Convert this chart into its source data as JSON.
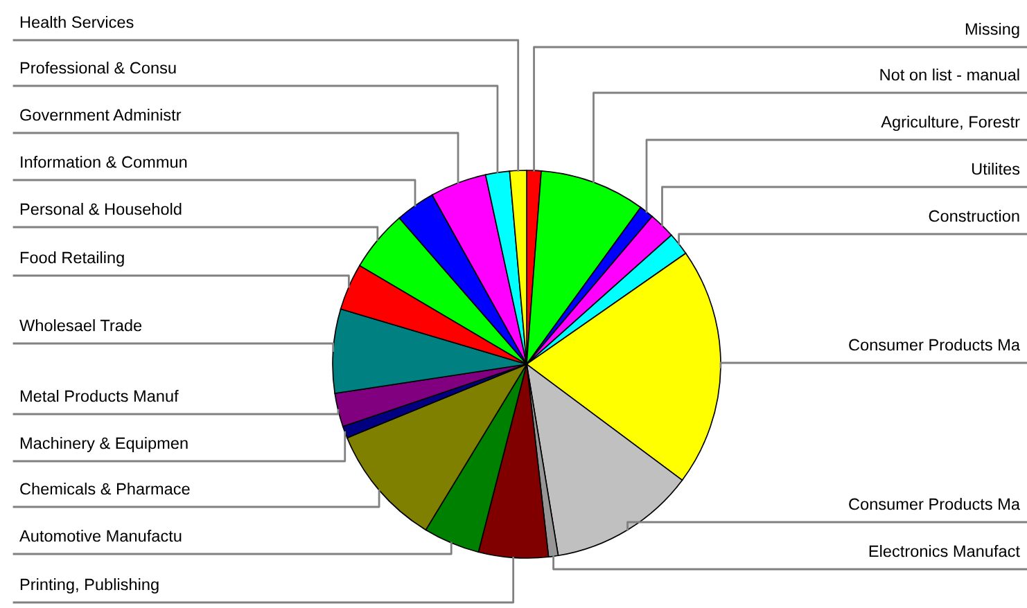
{
  "chart_data": {
    "type": "pie",
    "categories": [
      "Missing",
      "Not on list - manual",
      "Agriculture, Forestr",
      "Utilites",
      "Construction",
      "Consumer Products Ma",
      "Consumer Products Ma",
      "Electronics Manufact",
      "Printing, Publishing",
      "Automotive Manufactu",
      "Chemicals & Pharmace",
      "Machinery & Equipmen",
      "Metal Products Manuf",
      "Wholesael Trade",
      "Food Retailing",
      "Personal & Household",
      "Information & Commun",
      "Government Administr",
      "Professional & Consu",
      "Health Services"
    ],
    "values": [
      1.2,
      8.8,
      1.2,
      2.2,
      1.9,
      19.9,
      12.2,
      0.8,
      5.8,
      4.7,
      10.1,
      1.0,
      2.8,
      7.0,
      3.9,
      5.1,
      3.3,
      4.7,
      2.0,
      1.4
    ],
    "colors": [
      "#ff0000",
      "#00ff00",
      "#0000ff",
      "#ff00ff",
      "#00ffff",
      "#ffff00",
      "#c0c0c0",
      "#969696",
      "#800000",
      "#008000",
      "#808000",
      "#000080",
      "#800080",
      "#008080",
      "#ff0000",
      "#00ff00",
      "#0000ff",
      "#ff00ff",
      "#00ffff",
      "#ffff00"
    ],
    "legend": false
  }
}
